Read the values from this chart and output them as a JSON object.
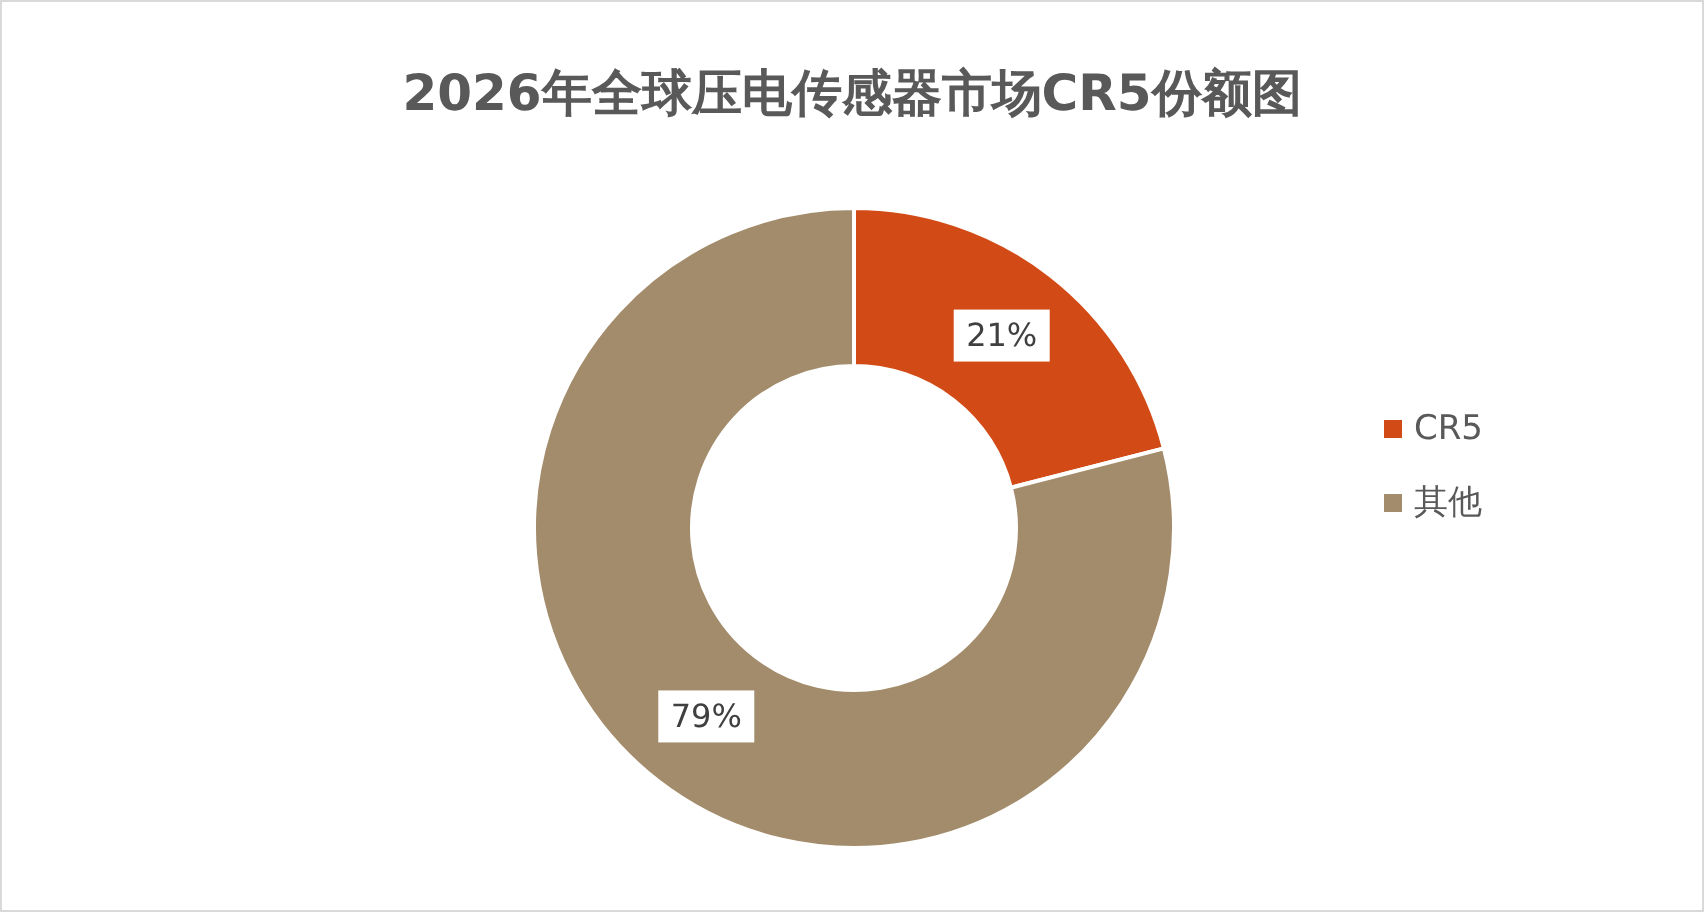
{
  "chart_data": {
    "type": "donut",
    "title": "2026年全球压电传感器市场CR5份额图",
    "categories": [
      "CR5",
      "其他"
    ],
    "values": [
      21,
      79
    ],
    "colors": [
      "#d24a16",
      "#a38c6b"
    ],
    "value_labels": [
      "21%",
      "79%"
    ],
    "legend": "right"
  }
}
